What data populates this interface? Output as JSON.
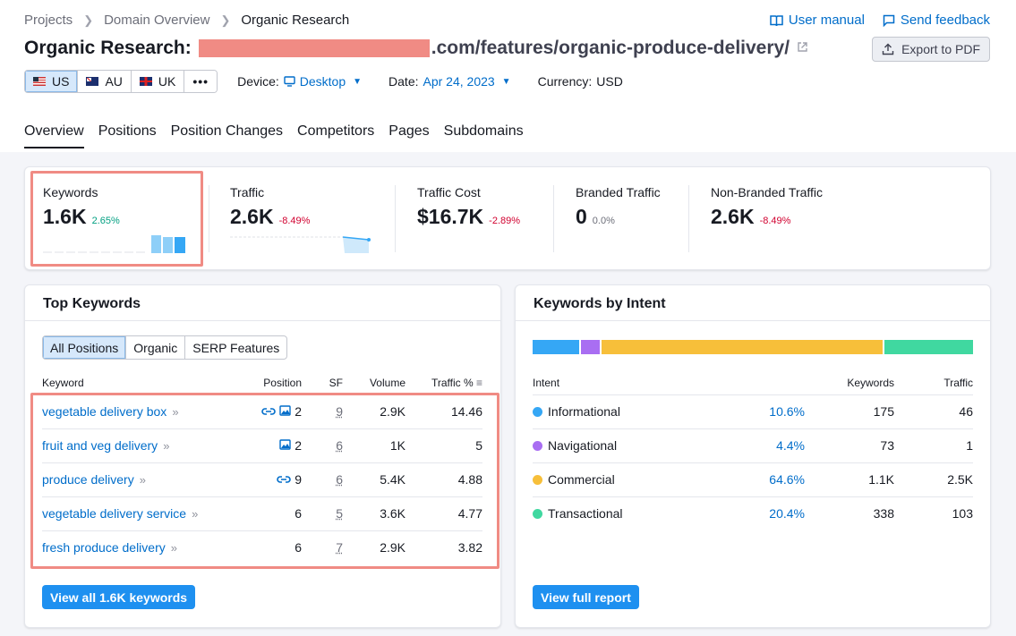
{
  "breadcrumb": [
    "Projects",
    "Domain Overview",
    "Organic Research"
  ],
  "top_links": {
    "manual": "User manual",
    "feedback": "Send feedback"
  },
  "title": {
    "prefix": "Organic Research:",
    "domain_visible": ".com/features/organic-produce-delivery/"
  },
  "export_label": "Export to PDF",
  "databases": [
    {
      "code": "US",
      "active": true
    },
    {
      "code": "AU",
      "active": false
    },
    {
      "code": "UK",
      "active": false
    }
  ],
  "more_label": "•••",
  "device": {
    "label": "Device:",
    "value": "Desktop"
  },
  "date": {
    "label": "Date:",
    "value": "Apr 24, 2023"
  },
  "currency": {
    "label": "Currency:",
    "value": "USD"
  },
  "tabs": [
    "Overview",
    "Positions",
    "Position Changes",
    "Competitors",
    "Pages",
    "Subdomains"
  ],
  "summary": {
    "keywords": {
      "label": "Keywords",
      "value": "1.6K",
      "delta": "2.65%"
    },
    "traffic": {
      "label": "Traffic",
      "value": "2.6K",
      "delta": "-8.49%"
    },
    "traffic_cost": {
      "label": "Traffic Cost",
      "value": "$16.7K",
      "delta": "-2.89%"
    },
    "branded": {
      "label": "Branded Traffic",
      "value": "0",
      "delta": "0.0%"
    },
    "non_branded": {
      "label": "Non-Branded Traffic",
      "value": "2.6K",
      "delta": "-8.49%"
    }
  },
  "top_keywords": {
    "title": "Top Keywords",
    "filters": [
      "All Positions",
      "Organic",
      "SERP Features"
    ],
    "columns": [
      "Keyword",
      "Position",
      "SF",
      "Volume",
      "Traffic %"
    ],
    "rows": [
      {
        "keyword": "vegetable delivery box",
        "icons": [
          "link",
          "image"
        ],
        "position": "2",
        "sf": "9",
        "volume": "2.9K",
        "traffic": "14.46"
      },
      {
        "keyword": "fruit and veg delivery",
        "icons": [
          "image"
        ],
        "position": "2",
        "sf": "6",
        "volume": "1K",
        "traffic": "5"
      },
      {
        "keyword": "produce delivery",
        "icons": [
          "link"
        ],
        "position": "9",
        "sf": "6",
        "volume": "5.4K",
        "traffic": "4.88"
      },
      {
        "keyword": "vegetable delivery service",
        "icons": [],
        "position": "6",
        "sf": "5",
        "volume": "3.6K",
        "traffic": "4.77"
      },
      {
        "keyword": "fresh produce delivery",
        "icons": [],
        "position": "6",
        "sf": "7",
        "volume": "2.9K",
        "traffic": "3.82"
      }
    ],
    "button": "View all 1.6K keywords"
  },
  "intent": {
    "title": "Keywords by Intent",
    "columns": [
      "Intent",
      "Keywords",
      "Traffic"
    ],
    "rows": [
      {
        "name": "Informational",
        "color": "#35a7f5",
        "pct": "10.6%",
        "share": 10.6,
        "keywords": "175",
        "traffic": "46"
      },
      {
        "name": "Navigational",
        "color": "#a96ef2",
        "pct": "4.4%",
        "share": 4.4,
        "keywords": "73",
        "traffic": "1"
      },
      {
        "name": "Commercial",
        "color": "#f7bf3a",
        "pct": "64.6%",
        "share": 64.6,
        "keywords": "1.1K",
        "traffic": "2.5K"
      },
      {
        "name": "Transactional",
        "color": "#40d8a0",
        "pct": "20.4%",
        "share": 20.4,
        "keywords": "338",
        "traffic": "103"
      }
    ],
    "button": "View full report"
  },
  "colors": {
    "accent": "#006dca",
    "button": "#1e90f0",
    "highlight": "#f08b84"
  }
}
